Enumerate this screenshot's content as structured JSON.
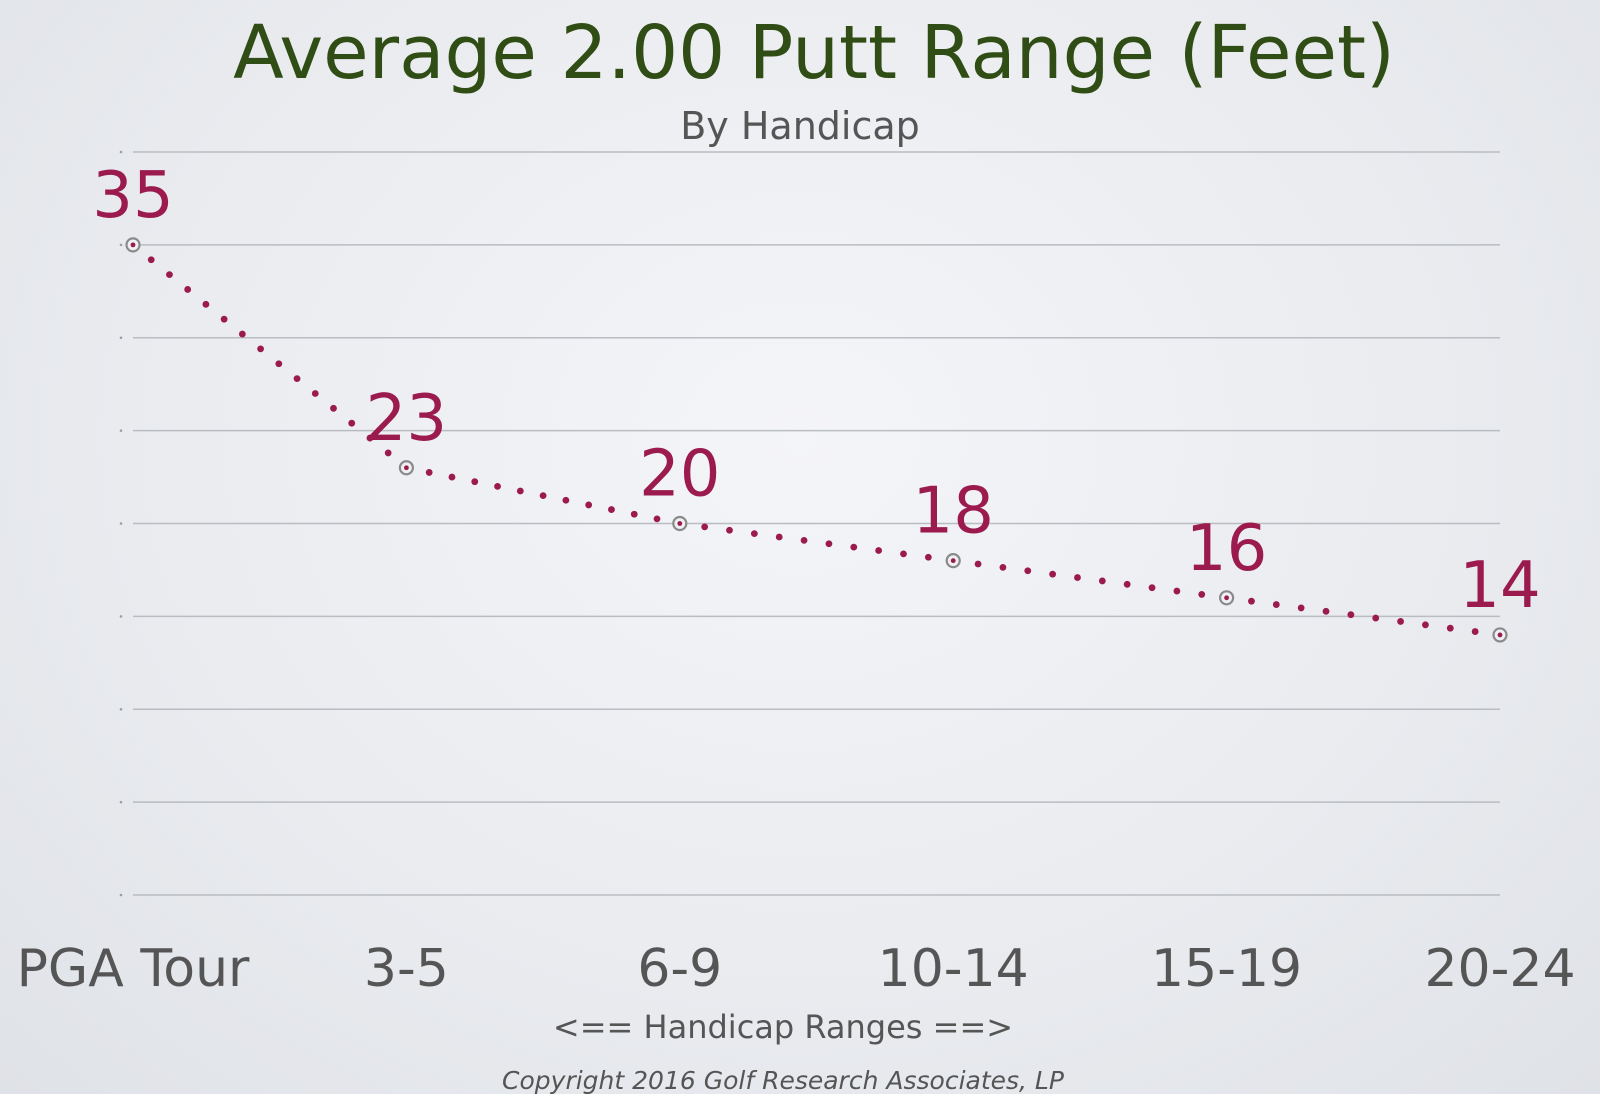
{
  "chart_data": {
    "type": "line",
    "title": "Average 2.00 Putt Range (Feet)",
    "subtitle": "By Handicap",
    "xlabel": "<== Handicap Ranges ==>",
    "ylabel": "",
    "categories": [
      "PGA Tour",
      "3-5",
      "6-9",
      "10-14",
      "15-19",
      "20-24"
    ],
    "series": [
      {
        "name": "Average 2.00 Putt Range (Feet)",
        "values": [
          35,
          23,
          20,
          18,
          16,
          14
        ]
      }
    ],
    "ylim": [
      0,
      40
    ],
    "grid": true,
    "gridlines": [
      0,
      5,
      10,
      15,
      20,
      25,
      30,
      35,
      40
    ],
    "line_style": "dotted",
    "data_labels": true
  },
  "footer": {
    "copyright": "Copyright 2016 Golf Research Associates, LP"
  },
  "colors": {
    "title": "#2f4d14",
    "subtitle": "#555555",
    "series": "#9b1b4e",
    "axis_text": "#555555",
    "grid": "#b9bcc1",
    "marker": "#8a8a8a"
  }
}
